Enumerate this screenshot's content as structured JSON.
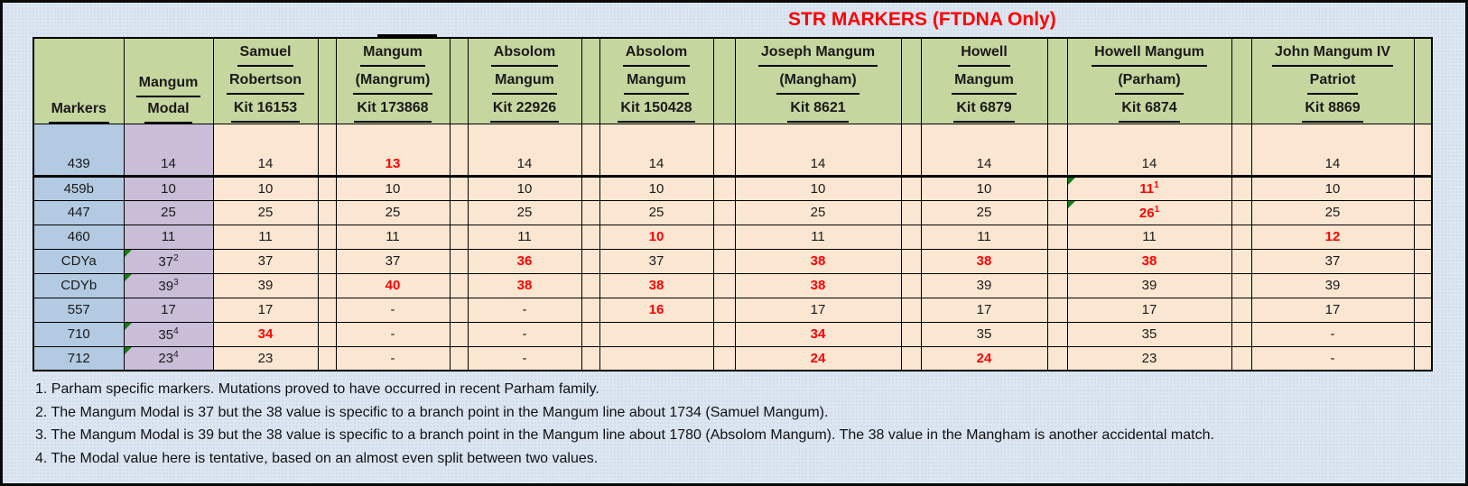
{
  "title": "STR MARKERS (FTDNA Only)",
  "colors": {
    "page_background": "#dce6f1",
    "header_green": "#c6d69f",
    "marker_blue": "#b3cbe2",
    "modal_purple": "#c9bdd7",
    "data_tan": "#fbe6d2",
    "mutation_red": "#ff0000",
    "flag_triangle_green": "#167c16"
  },
  "table": {
    "markers_header": "Markers",
    "modal_header_lines": [
      "Mangum",
      "Modal"
    ],
    "kit_headers": [
      {
        "lines": [
          "Samuel",
          "Robertson",
          "Kit 16153"
        ]
      },
      {
        "lines": [
          "Mangum",
          "(Mangrum)",
          "Kit 173868"
        ]
      },
      {
        "lines": [
          "Absolom",
          "Mangum",
          "Kit 22926"
        ]
      },
      {
        "lines": [
          "Absolom",
          "Mangum",
          "Kit 150428"
        ]
      },
      {
        "lines": [
          "Joseph Mangum",
          "(Mangham)",
          "Kit 8621"
        ]
      },
      {
        "lines": [
          "Howell",
          "Mangum",
          "Kit 6879"
        ]
      },
      {
        "lines": [
          "Howell Mangum",
          "(Parham)",
          "Kit 6874"
        ]
      },
      {
        "lines": [
          "John Mangum IV",
          "Patriot",
          "Kit 8869"
        ]
      }
    ],
    "rows": [
      {
        "marker": "439",
        "modal": {
          "t": "14"
        },
        "cells": [
          {
            "t": "14"
          },
          {
            "t": "13",
            "red": true
          },
          {
            "t": "14"
          },
          {
            "t": "14"
          },
          {
            "t": "14"
          },
          {
            "t": "14"
          },
          {
            "t": "14"
          },
          {
            "t": "14"
          }
        ]
      },
      {
        "marker": "459b",
        "modal": {
          "t": "10"
        },
        "cells": [
          {
            "t": "10"
          },
          {
            "t": "10"
          },
          {
            "t": "10"
          },
          {
            "t": "10"
          },
          {
            "t": "10"
          },
          {
            "t": "10"
          },
          {
            "t": "11",
            "sup": "1",
            "red": true,
            "flag": true
          },
          {
            "t": "10"
          }
        ]
      },
      {
        "marker": "447",
        "modal": {
          "t": "25"
        },
        "cells": [
          {
            "t": "25"
          },
          {
            "t": "25"
          },
          {
            "t": "25"
          },
          {
            "t": "25"
          },
          {
            "t": "25"
          },
          {
            "t": "25"
          },
          {
            "t": "26",
            "sup": "1",
            "red": true,
            "flag": true
          },
          {
            "t": "25"
          }
        ]
      },
      {
        "marker": "460",
        "modal": {
          "t": "11"
        },
        "cells": [
          {
            "t": "11"
          },
          {
            "t": "11"
          },
          {
            "t": "11"
          },
          {
            "t": "10",
            "red": true
          },
          {
            "t": "11"
          },
          {
            "t": "11"
          },
          {
            "t": "11"
          },
          {
            "t": "12",
            "red": true
          }
        ]
      },
      {
        "marker": "CDYa",
        "modal": {
          "t": "37",
          "sup": "2",
          "flag": true
        },
        "cells": [
          {
            "t": "37"
          },
          {
            "t": "37"
          },
          {
            "t": "36",
            "red": true
          },
          {
            "t": "37"
          },
          {
            "t": "38",
            "red": true
          },
          {
            "t": "38",
            "red": true
          },
          {
            "t": "38",
            "red": true
          },
          {
            "t": "37"
          }
        ]
      },
      {
        "marker": "CDYb",
        "modal": {
          "t": "39",
          "sup": "3",
          "flag": true
        },
        "cells": [
          {
            "t": "39"
          },
          {
            "t": "40",
            "red": true
          },
          {
            "t": "38",
            "red": true
          },
          {
            "t": "38",
            "red": true
          },
          {
            "t": "38",
            "red": true
          },
          {
            "t": "39"
          },
          {
            "t": "39"
          },
          {
            "t": "39"
          }
        ]
      },
      {
        "marker": "557",
        "modal": {
          "t": "17"
        },
        "cells": [
          {
            "t": "17"
          },
          {
            "t": "-"
          },
          {
            "t": "-"
          },
          {
            "t": "16",
            "red": true
          },
          {
            "t": "17"
          },
          {
            "t": "17"
          },
          {
            "t": "17"
          },
          {
            "t": "17"
          }
        ]
      },
      {
        "marker": "710",
        "modal": {
          "t": "35",
          "sup": "4",
          "flag": true
        },
        "cells": [
          {
            "t": "34",
            "red": true
          },
          {
            "t": "-"
          },
          {
            "t": "-"
          },
          {
            "t": ""
          },
          {
            "t": "34",
            "red": true
          },
          {
            "t": "35"
          },
          {
            "t": "35"
          },
          {
            "t": "-"
          }
        ]
      },
      {
        "marker": "712",
        "modal": {
          "t": "23",
          "sup": "4",
          "flag": true
        },
        "cells": [
          {
            "t": "23"
          },
          {
            "t": "-"
          },
          {
            "t": "-"
          },
          {
            "t": ""
          },
          {
            "t": "24",
            "red": true
          },
          {
            "t": "24",
            "red": true
          },
          {
            "t": "23"
          },
          {
            "t": "-"
          }
        ]
      }
    ]
  },
  "footnotes": [
    "1. Parham specific markers. Mutations proved to have occurred in recent Parham family.",
    "2. The Mangum Modal is 37 but the 38 value is specific to a branch point in the Mangum line about 1734 (Samuel Mangum).",
    "3. The Mangum Modal is 39 but the 38 value is specific to a branch point in the Mangum line about 1780 (Absolom Mangum). The 38 value in the Mangham is another accidental match.",
    "4. The Modal value here is tentative, based on an almost even split between two values."
  ]
}
